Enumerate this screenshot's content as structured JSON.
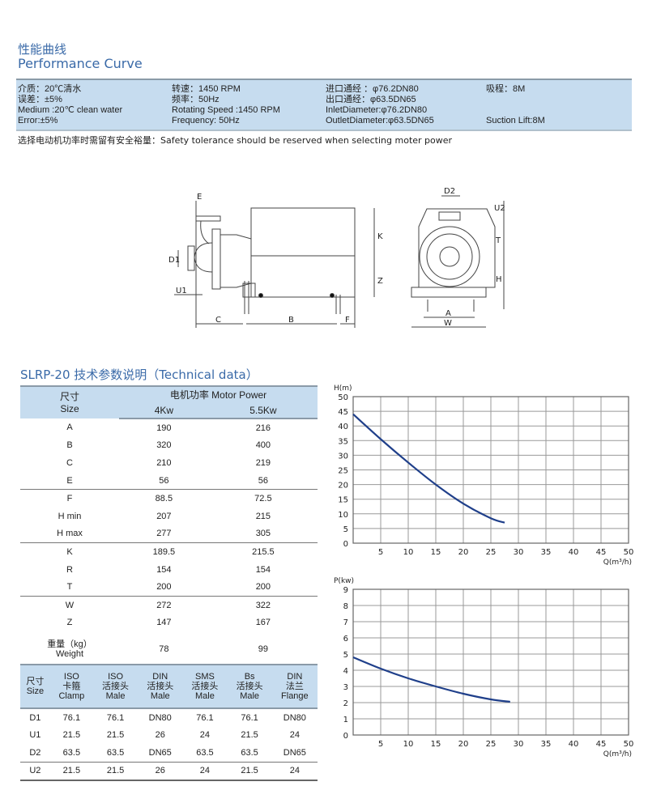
{
  "header": {
    "title_cn": "性能曲线",
    "title_en": "Performance Curve"
  },
  "info_band": {
    "col1": [
      "介质：20℃清水",
      "误差：±5%",
      "Medium :20℃ clean water",
      "Error:±5%"
    ],
    "col2": [
      "转速：1450 RPM",
      "频率：50Hz",
      "Rotating Speed :1450 RPM",
      "Frequency: 50Hz"
    ],
    "col3": [
      "进口通经 ：φ76.2DN80",
      "出口通经：φ63.5DN65",
      "InletDiameter:φ76.2DN80",
      "OutletDiameter:φ63.5DN65"
    ],
    "col4": [
      "吸程：8M",
      "",
      "",
      "Suction Lift:8M"
    ]
  },
  "note": "选择电动机功率时需留有安全裕量：Safety tolerance should be reserved when selecting moter power",
  "drawing": {
    "labels": [
      "E",
      "D1",
      "U1",
      "C",
      "B",
      "F",
      "K",
      "Z",
      "D2",
      "U2",
      "T",
      "H",
      "A",
      "W"
    ]
  },
  "tech_section_title": "SLRP-20 技术参数说明（Technical data）",
  "tech_table": {
    "size_header_cn": "尺寸",
    "size_header_en": "Size",
    "power_header": "电机功率   Motor Power",
    "power_cols": [
      "4Kw",
      "5.5Kw"
    ],
    "rows": [
      {
        "size": "A",
        "v1": "190",
        "v2": "216"
      },
      {
        "size": "B",
        "v1": "320",
        "v2": "400"
      },
      {
        "size": "C",
        "v1": "210",
        "v2": "219"
      },
      {
        "size": "E",
        "v1": "56",
        "v2": "56"
      },
      {
        "size": "F",
        "v1": "88.5",
        "v2": "72.5"
      },
      {
        "size": "H min",
        "v1": "207",
        "v2": "215"
      },
      {
        "size": "H max",
        "v1": "277",
        "v2": "305"
      },
      {
        "size": "K",
        "v1": "189.5",
        "v2": "215.5"
      },
      {
        "size": "R",
        "v1": "154",
        "v2": "154"
      },
      {
        "size": "T",
        "v1": "200",
        "v2": "200"
      },
      {
        "size": "W",
        "v1": "272",
        "v2": "322"
      },
      {
        "size": "Z",
        "v1": "147",
        "v2": "167"
      }
    ],
    "weight_row": {
      "size_cn": "重量（kg）",
      "size_en": "Weight",
      "v1": "78",
      "v2": "99"
    }
  },
  "connection_table": {
    "headers": [
      [
        "尺寸",
        "Size"
      ],
      [
        "ISO",
        "卡箍",
        "Clamp"
      ],
      [
        "ISO",
        "活接头",
        "Male"
      ],
      [
        "DIN",
        "活接头",
        "Male"
      ],
      [
        "SMS",
        "活接头",
        "Male"
      ],
      [
        "Bs",
        "活接头",
        "Male"
      ],
      [
        "DIN",
        "法兰",
        "Flange"
      ]
    ],
    "rows": [
      [
        "D1",
        "76.1",
        "76.1",
        "DN80",
        "76.1",
        "76.1",
        "DN80"
      ],
      [
        "U1",
        "21.5",
        "21.5",
        "26",
        "24",
        "21.5",
        "24"
      ],
      [
        "D2",
        "63.5",
        "63.5",
        "DN65",
        "63.5",
        "63.5",
        "DN65"
      ],
      [
        "U2",
        "21.5",
        "21.5",
        "26",
        "24",
        "21.5",
        "24"
      ]
    ]
  },
  "chart_data": [
    {
      "type": "line",
      "ylabel": "H(m)",
      "xlabel": "Q(m³/h)",
      "xlim": [
        0,
        50
      ],
      "ylim": [
        0,
        50
      ],
      "xticks": [
        5,
        10,
        15,
        20,
        25,
        30,
        35,
        40,
        45,
        50
      ],
      "yticks": [
        0,
        5,
        10,
        15,
        20,
        25,
        30,
        35,
        40,
        45,
        50
      ],
      "grid": true,
      "line_color": "#1f3f8a",
      "x": [
        0,
        5,
        10,
        15,
        20,
        25,
        27.5
      ],
      "y": [
        44,
        35.5,
        27.5,
        20,
        13.5,
        8.5,
        7
      ]
    },
    {
      "type": "line",
      "ylabel": "P(kw)",
      "xlabel": "Q(m³/h)",
      "xlim": [
        0,
        50
      ],
      "ylim": [
        0,
        9
      ],
      "xticks": [
        5,
        10,
        15,
        20,
        25,
        30,
        35,
        40,
        45,
        50
      ],
      "yticks": [
        0,
        1,
        2,
        3,
        4,
        5,
        6,
        7,
        8,
        9
      ],
      "grid": true,
      "line_color": "#1f3f8a",
      "x": [
        0,
        5,
        10,
        15,
        20,
        25,
        28.5
      ],
      "y": [
        4.8,
        4.1,
        3.5,
        3.0,
        2.55,
        2.2,
        2.05
      ]
    }
  ]
}
